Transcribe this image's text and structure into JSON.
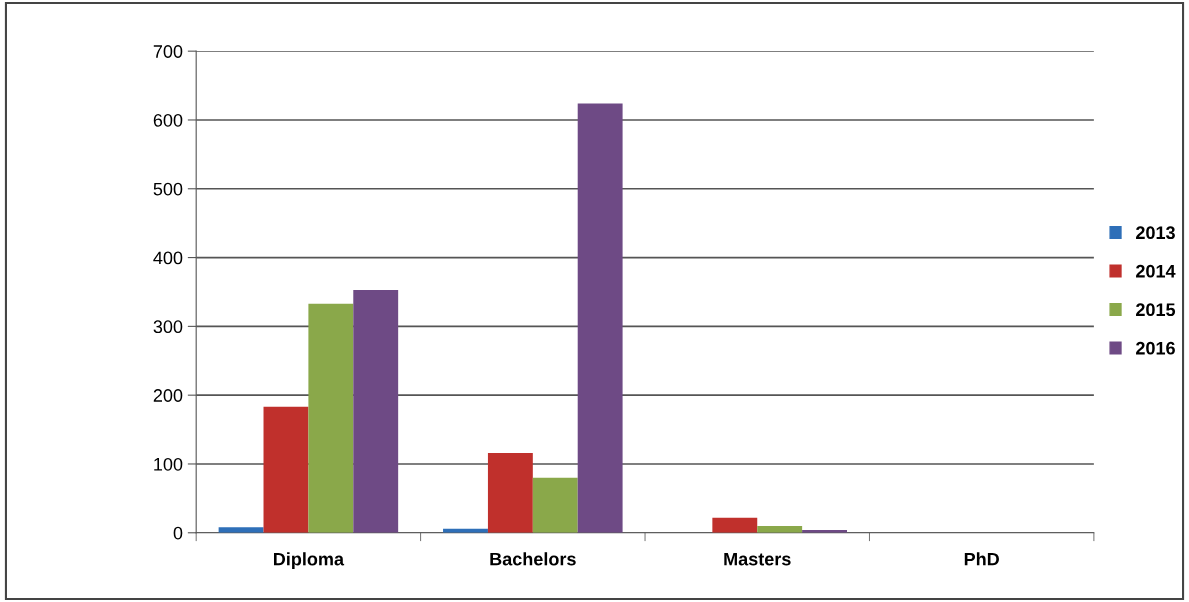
{
  "chart_data": {
    "type": "bar",
    "categories": [
      "Diploma",
      "Bachelors",
      "Masters",
      "PhD"
    ],
    "series": [
      {
        "name": "2013",
        "color": "#2e6fb8",
        "values": [
          8,
          6,
          0,
          0
        ]
      },
      {
        "name": "2014",
        "color": "#c0302c",
        "values": [
          183,
          116,
          22,
          0
        ]
      },
      {
        "name": "2015",
        "color": "#8aa84a",
        "values": [
          333,
          80,
          10,
          0
        ]
      },
      {
        "name": "2016",
        "color": "#6e4a85",
        "values": [
          353,
          624,
          4,
          0
        ]
      }
    ],
    "ylim": [
      0,
      700
    ],
    "yticks": [
      0,
      100,
      200,
      300,
      400,
      500,
      600,
      700
    ],
    "grid": "y",
    "legend": "right"
  }
}
